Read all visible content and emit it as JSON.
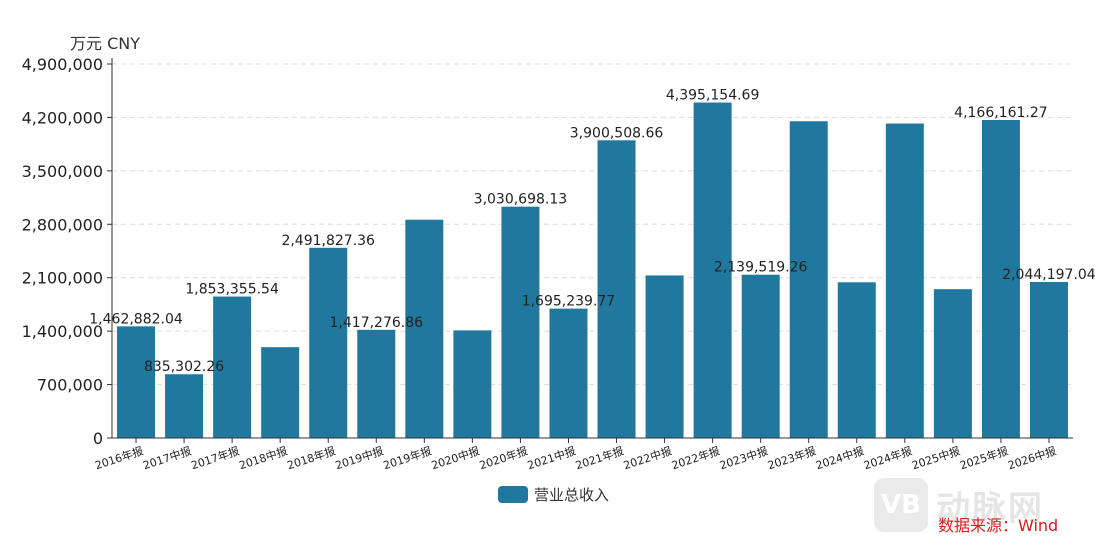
{
  "unit_label": "万元  CNY",
  "legend_label": "营业总收入",
  "watermark_text": "动脉网",
  "watermark_logo": "VB",
  "source_text": "数据来源：Wind",
  "colors": {
    "bar": "#21789f",
    "grid": "#dcdcdc",
    "axis": "#333333"
  },
  "chart_data": {
    "type": "bar",
    "categories": [
      "2016年报",
      "2017中报",
      "2017年报",
      "2018中报",
      "2018年报",
      "2019中报",
      "2019年报",
      "2020中报",
      "2020年报",
      "2021中报",
      "2021年报",
      "2022中报",
      "2022年报",
      "2023中报",
      "2023年报",
      "2024中报",
      "2024年报",
      "2025中报",
      "2025年报",
      "2026中报"
    ],
    "series": [
      {
        "name": "营业总收入",
        "values": [
          1462882.04,
          835302.26,
          1853355.54,
          1190000,
          2491827.36,
          1417276.86,
          2860000,
          1410000,
          3030698.13,
          1695239.77,
          3900508.66,
          2130000,
          4395154.69,
          2139519.26,
          4150000,
          2040000,
          4120000,
          1950000,
          4166161.27,
          2044197.04
        ],
        "data_labels": [
          "1,462,882.04",
          "835,302.26",
          "1,853,355.54",
          "",
          "2,491,827.36",
          "1,417,276.86",
          "",
          "",
          "3,030,698.13",
          "1,695,239.77",
          "3,900,508.66",
          "",
          "4,395,154.69",
          "2,139,519.26",
          "",
          "",
          "",
          "",
          "4,166,161.27",
          "2,044,197.04"
        ]
      }
    ],
    "ylim": [
      0,
      4900000
    ],
    "yticks": [
      0,
      700000,
      1400000,
      2100000,
      2800000,
      3500000,
      4200000,
      4900000
    ],
    "ytick_labels": [
      "0",
      "700,000",
      "1,400,000",
      "2,100,000",
      "2,800,000",
      "3,500,000",
      "4,200,000",
      "4,900,000"
    ],
    "grid": true,
    "legend": "bottom-center"
  }
}
